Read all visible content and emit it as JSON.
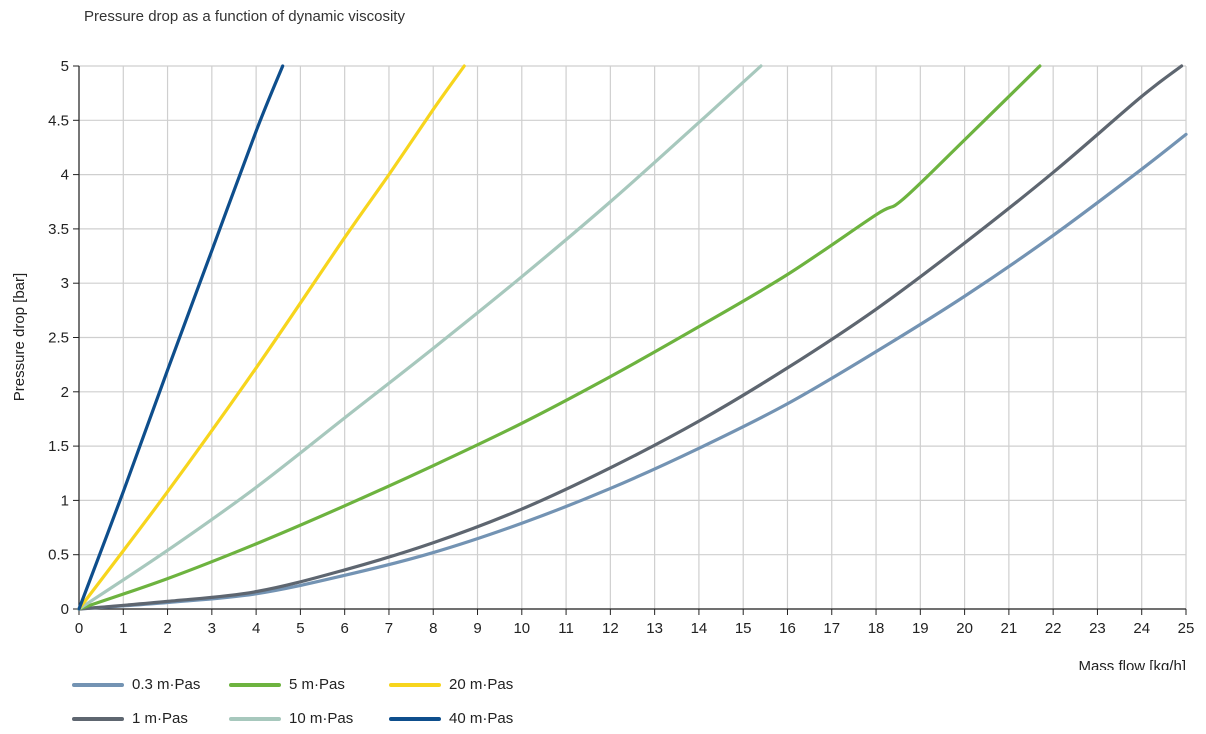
{
  "chart_data": {
    "type": "line",
    "title": "Pressure drop as a function of dynamic viscosity",
    "xlabel": "Mass flow [kg/h]",
    "ylabel": "Pressure drop [bar]",
    "xlim": [
      0,
      25
    ],
    "ylim": [
      0,
      5
    ],
    "xticks": [
      "0",
      "1",
      "2",
      "3",
      "4",
      "5",
      "6",
      "7",
      "8",
      "9",
      "10",
      "11",
      "12",
      "13",
      "14",
      "15",
      "16",
      "17",
      "18",
      "19",
      "20",
      "21",
      "22",
      "23",
      "24",
      "25"
    ],
    "yticks": [
      "0",
      "0.5",
      "1",
      "1.5",
      "2",
      "2.5",
      "3",
      "3.5",
      "4",
      "4.5",
      "5"
    ],
    "grid": true,
    "legend_position": "bottom-left",
    "series": [
      {
        "name": "0.3 m·Pas",
        "color": "#7393b3",
        "x": [
          0,
          2,
          4,
          6,
          8,
          10,
          12,
          14,
          16,
          18,
          20,
          22,
          24,
          25
        ],
        "y": [
          0,
          0.06,
          0.14,
          0.31,
          0.52,
          0.79,
          1.11,
          1.48,
          1.89,
          2.37,
          2.88,
          3.44,
          4.05,
          4.37
        ]
      },
      {
        "name": "1 m·Pas",
        "color": "#5e6670",
        "x": [
          0,
          2,
          4,
          6,
          8,
          10,
          12,
          14,
          16,
          18,
          20,
          22,
          24,
          24.9
        ],
        "y": [
          0,
          0.07,
          0.16,
          0.36,
          0.61,
          0.92,
          1.3,
          1.73,
          2.22,
          2.76,
          3.37,
          4.02,
          4.72,
          5.0
        ]
      },
      {
        "name": "5 m·Pas",
        "color": "#6db33f",
        "x": [
          0,
          2,
          4,
          6,
          8,
          10,
          12,
          14,
          16,
          18,
          18.6,
          20,
          21.7
        ],
        "y": [
          0,
          0.28,
          0.6,
          0.95,
          1.32,
          1.71,
          2.14,
          2.6,
          3.08,
          3.63,
          3.77,
          4.32,
          5.0
        ]
      },
      {
        "name": "10 m·Pas",
        "color": "#a7c8bd",
        "x": [
          0,
          2,
          4,
          6,
          8,
          10,
          12,
          14,
          15.4
        ],
        "y": [
          0,
          0.54,
          1.12,
          1.76,
          2.4,
          3.06,
          3.75,
          4.48,
          5.0
        ]
      },
      {
        "name": "20 m·Pas",
        "color": "#f7d51d",
        "x": [
          0,
          2,
          4,
          6,
          7,
          8,
          8.7
        ],
        "y": [
          0,
          1.08,
          2.22,
          3.42,
          4.0,
          4.6,
          5.0
        ]
      },
      {
        "name": "40 m·Pas",
        "color": "#0e4e8c",
        "x": [
          0,
          1,
          2,
          3,
          4,
          4.6
        ],
        "y": [
          0,
          1.08,
          2.2,
          3.3,
          4.4,
          5.0
        ]
      }
    ]
  }
}
